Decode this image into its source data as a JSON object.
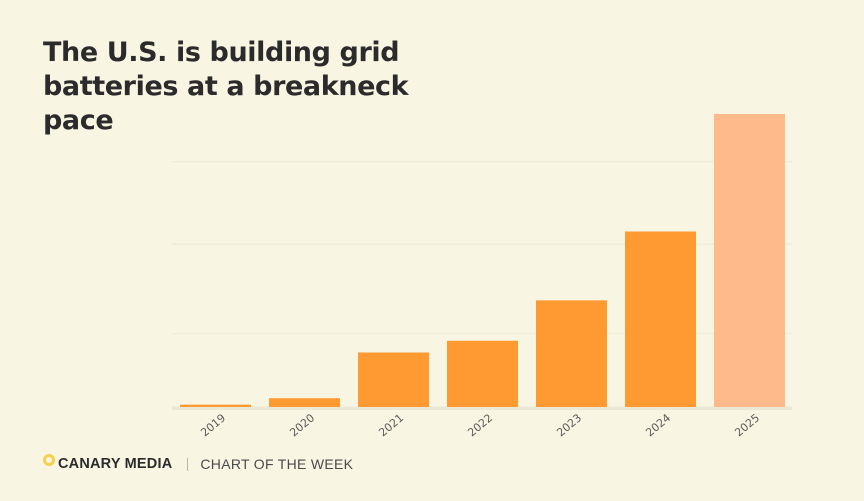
{
  "title": "The U.S. is building grid batteries at a breakneck pace",
  "footer": {
    "brand": "CANARY MEDIA",
    "tag": "CHART OF THE WEEK"
  },
  "colors": {
    "bar": "#ff9a33",
    "bar_highlight": "#ffba8c",
    "gridline": "#ece8d6",
    "tick_label": "#5a5a5a",
    "background": "#f9f5e3"
  },
  "chart_data": {
    "type": "bar",
    "categories": [
      "2019",
      "2020",
      "2021",
      "2022",
      "2023",
      "2024",
      "2025"
    ],
    "values": [
      0.8,
      3.0,
      18.6,
      22.6,
      36.4,
      59.9,
      100
    ],
    "highlight_category": "2025",
    "ylim": [
      0,
      100
    ],
    "grid": true,
    "xlabel": "",
    "ylabel": ""
  }
}
